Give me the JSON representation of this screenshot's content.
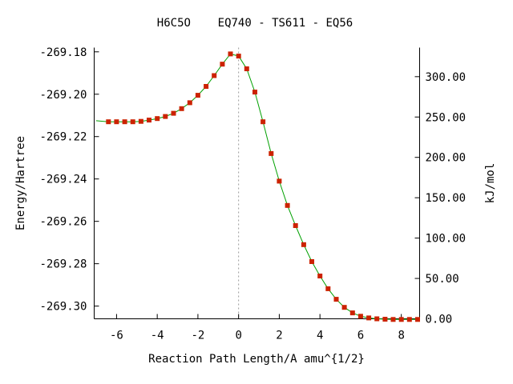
{
  "chart_data": {
    "type": "line",
    "title": "H6C5O    EQ740 - TS611 - EQ56",
    "xlabel": "Reaction Path Length/A amu^{1/2}",
    "ylabel": "Energy/Hartree",
    "y2label": "kJ/mol",
    "xlim": [
      -7.1,
      8.9
    ],
    "ylim": [
      -269.306,
      -269.178
    ],
    "y2lim": [
      0.0,
      336.0
    ],
    "x_ticks": [
      -6,
      -4,
      -2,
      0,
      2,
      4,
      6,
      8
    ],
    "x_tick_labels": [
      "-6",
      "-4",
      "-2",
      "0",
      "2",
      "4",
      "6",
      "8"
    ],
    "y_ticks": [
      -269.18,
      -269.2,
      -269.22,
      -269.24,
      -269.26,
      -269.28,
      -269.3
    ],
    "y_tick_labels": [
      "-269.18",
      "-269.20",
      "-269.22",
      "-269.24",
      "-269.26",
      "-269.28",
      "-269.30"
    ],
    "y2_ticks": [
      0,
      50,
      100,
      150,
      200,
      250,
      300
    ],
    "y2_tick_labels": [
      "0.00",
      "50.00",
      "100.00",
      "150.00",
      "200.00",
      "250.00",
      "300.00"
    ],
    "ts_x": 0.0,
    "series": [
      {
        "line_color": "#00a000",
        "marker_color": "#cc2200",
        "x": [
          -7.0,
          -6.4,
          -6.0,
          -5.6,
          -5.2,
          -4.8,
          -4.4,
          -4.0,
          -3.6,
          -3.2,
          -2.8,
          -2.4,
          -2.0,
          -1.6,
          -1.2,
          -0.8,
          -0.4,
          0.0,
          0.4,
          0.8,
          1.2,
          1.6,
          2.0,
          2.4,
          2.8,
          3.2,
          3.6,
          4.0,
          4.4,
          4.8,
          5.2,
          5.6,
          6.0,
          6.4,
          6.8,
          7.2,
          7.6,
          8.0,
          8.4,
          8.8
        ],
        "y": [
          -269.2125,
          -269.213,
          -269.213,
          -269.213,
          -269.213,
          -269.2128,
          -269.2122,
          -269.2115,
          -269.2105,
          -269.209,
          -269.2068,
          -269.204,
          -269.2005,
          -269.1963,
          -269.1912,
          -269.1858,
          -269.181,
          -269.182,
          -269.188,
          -269.199,
          -269.213,
          -269.228,
          -269.241,
          -269.2525,
          -269.262,
          -269.271,
          -269.279,
          -269.2858,
          -269.2918,
          -269.2968,
          -269.3006,
          -269.3032,
          -269.3048,
          -269.3056,
          -269.306,
          -269.3062,
          -269.3063,
          -269.3063,
          -269.3063,
          -269.3063
        ]
      }
    ],
    "grid": false,
    "legend": "none"
  }
}
